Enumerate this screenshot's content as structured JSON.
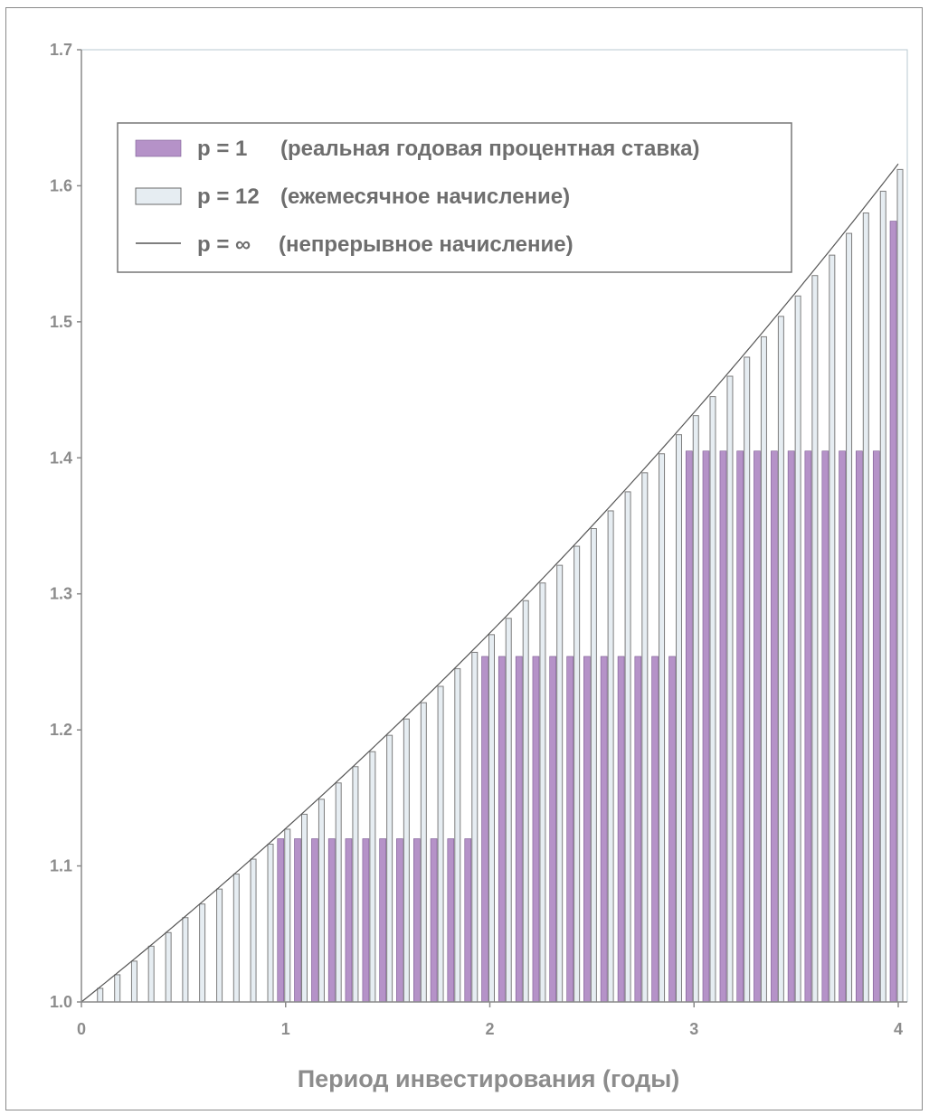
{
  "chart_data": {
    "type": "bar",
    "xlabel": "Период инвестирования (годы)",
    "ylabel": "",
    "xlim": [
      0,
      4
    ],
    "ylim": [
      1.0,
      1.7
    ],
    "x_ticks": [
      "0",
      "1",
      "2",
      "3",
      "4"
    ],
    "y_ticks": [
      "1.0",
      "1.1",
      "1.2",
      "1.3",
      "1.4",
      "1.5",
      "1.6",
      "1.7"
    ],
    "annual_rate": 0.12,
    "legend_position": "top-left",
    "legend": [
      {
        "label_p": "p = 1",
        "label_desc": "(реальная годовая процентная ставка)",
        "symbol": "filled-box",
        "color": "#b592c8"
      },
      {
        "label_p": "p = 12",
        "label_desc": "(ежемесячное начисление)",
        "symbol": "hollow-box",
        "color": "#e6edf2"
      },
      {
        "label_p": "p = ∞",
        "label_desc": "(непрерывное начисление)",
        "symbol": "line",
        "color": "#555555"
      }
    ],
    "series": [
      {
        "name": "p = 1",
        "x": [
          1.0,
          1.083,
          1.167,
          1.25,
          1.333,
          1.417,
          1.5,
          1.583,
          1.667,
          1.75,
          1.833,
          1.917,
          2.0,
          2.083,
          2.167,
          2.25,
          2.333,
          2.417,
          2.5,
          2.583,
          2.667,
          2.75,
          2.833,
          2.917,
          3.0,
          3.083,
          3.167,
          3.25,
          3.333,
          3.417,
          3.5,
          3.583,
          3.667,
          3.75,
          3.833,
          3.917,
          4.0
        ],
        "values": [
          1.12,
          1.12,
          1.12,
          1.12,
          1.12,
          1.12,
          1.12,
          1.12,
          1.12,
          1.12,
          1.12,
          1.12,
          1.254,
          1.254,
          1.254,
          1.254,
          1.254,
          1.254,
          1.254,
          1.254,
          1.254,
          1.254,
          1.254,
          1.254,
          1.405,
          1.405,
          1.405,
          1.405,
          1.405,
          1.405,
          1.405,
          1.405,
          1.405,
          1.405,
          1.405,
          1.405,
          1.574
        ]
      },
      {
        "name": "p = 12",
        "x": [
          0.083,
          0.167,
          0.25,
          0.333,
          0.417,
          0.5,
          0.583,
          0.667,
          0.75,
          0.833,
          0.917,
          1.0,
          1.083,
          1.167,
          1.25,
          1.333,
          1.417,
          1.5,
          1.583,
          1.667,
          1.75,
          1.833,
          1.917,
          2.0,
          2.083,
          2.167,
          2.25,
          2.333,
          2.417,
          2.5,
          2.583,
          2.667,
          2.75,
          2.833,
          2.917,
          3.0,
          3.083,
          3.167,
          3.25,
          3.333,
          3.417,
          3.5,
          3.583,
          3.667,
          3.75,
          3.833,
          3.917,
          4.0
        ],
        "values": [
          1.01,
          1.02,
          1.03,
          1.041,
          1.051,
          1.062,
          1.072,
          1.083,
          1.094,
          1.105,
          1.116,
          1.127,
          1.138,
          1.149,
          1.161,
          1.173,
          1.184,
          1.196,
          1.208,
          1.22,
          1.232,
          1.245,
          1.257,
          1.27,
          1.282,
          1.295,
          1.308,
          1.321,
          1.335,
          1.348,
          1.361,
          1.375,
          1.389,
          1.403,
          1.417,
          1.431,
          1.445,
          1.46,
          1.474,
          1.489,
          1.504,
          1.519,
          1.534,
          1.549,
          1.565,
          1.58,
          1.596,
          1.612
        ]
      },
      {
        "name": "p = ∞",
        "x": [
          0.0,
          0.5,
          1.0,
          1.5,
          2.0,
          2.5,
          3.0,
          3.5,
          4.0
        ],
        "values": [
          1.0,
          1.062,
          1.127,
          1.197,
          1.271,
          1.35,
          1.433,
          1.522,
          1.616
        ]
      }
    ]
  }
}
